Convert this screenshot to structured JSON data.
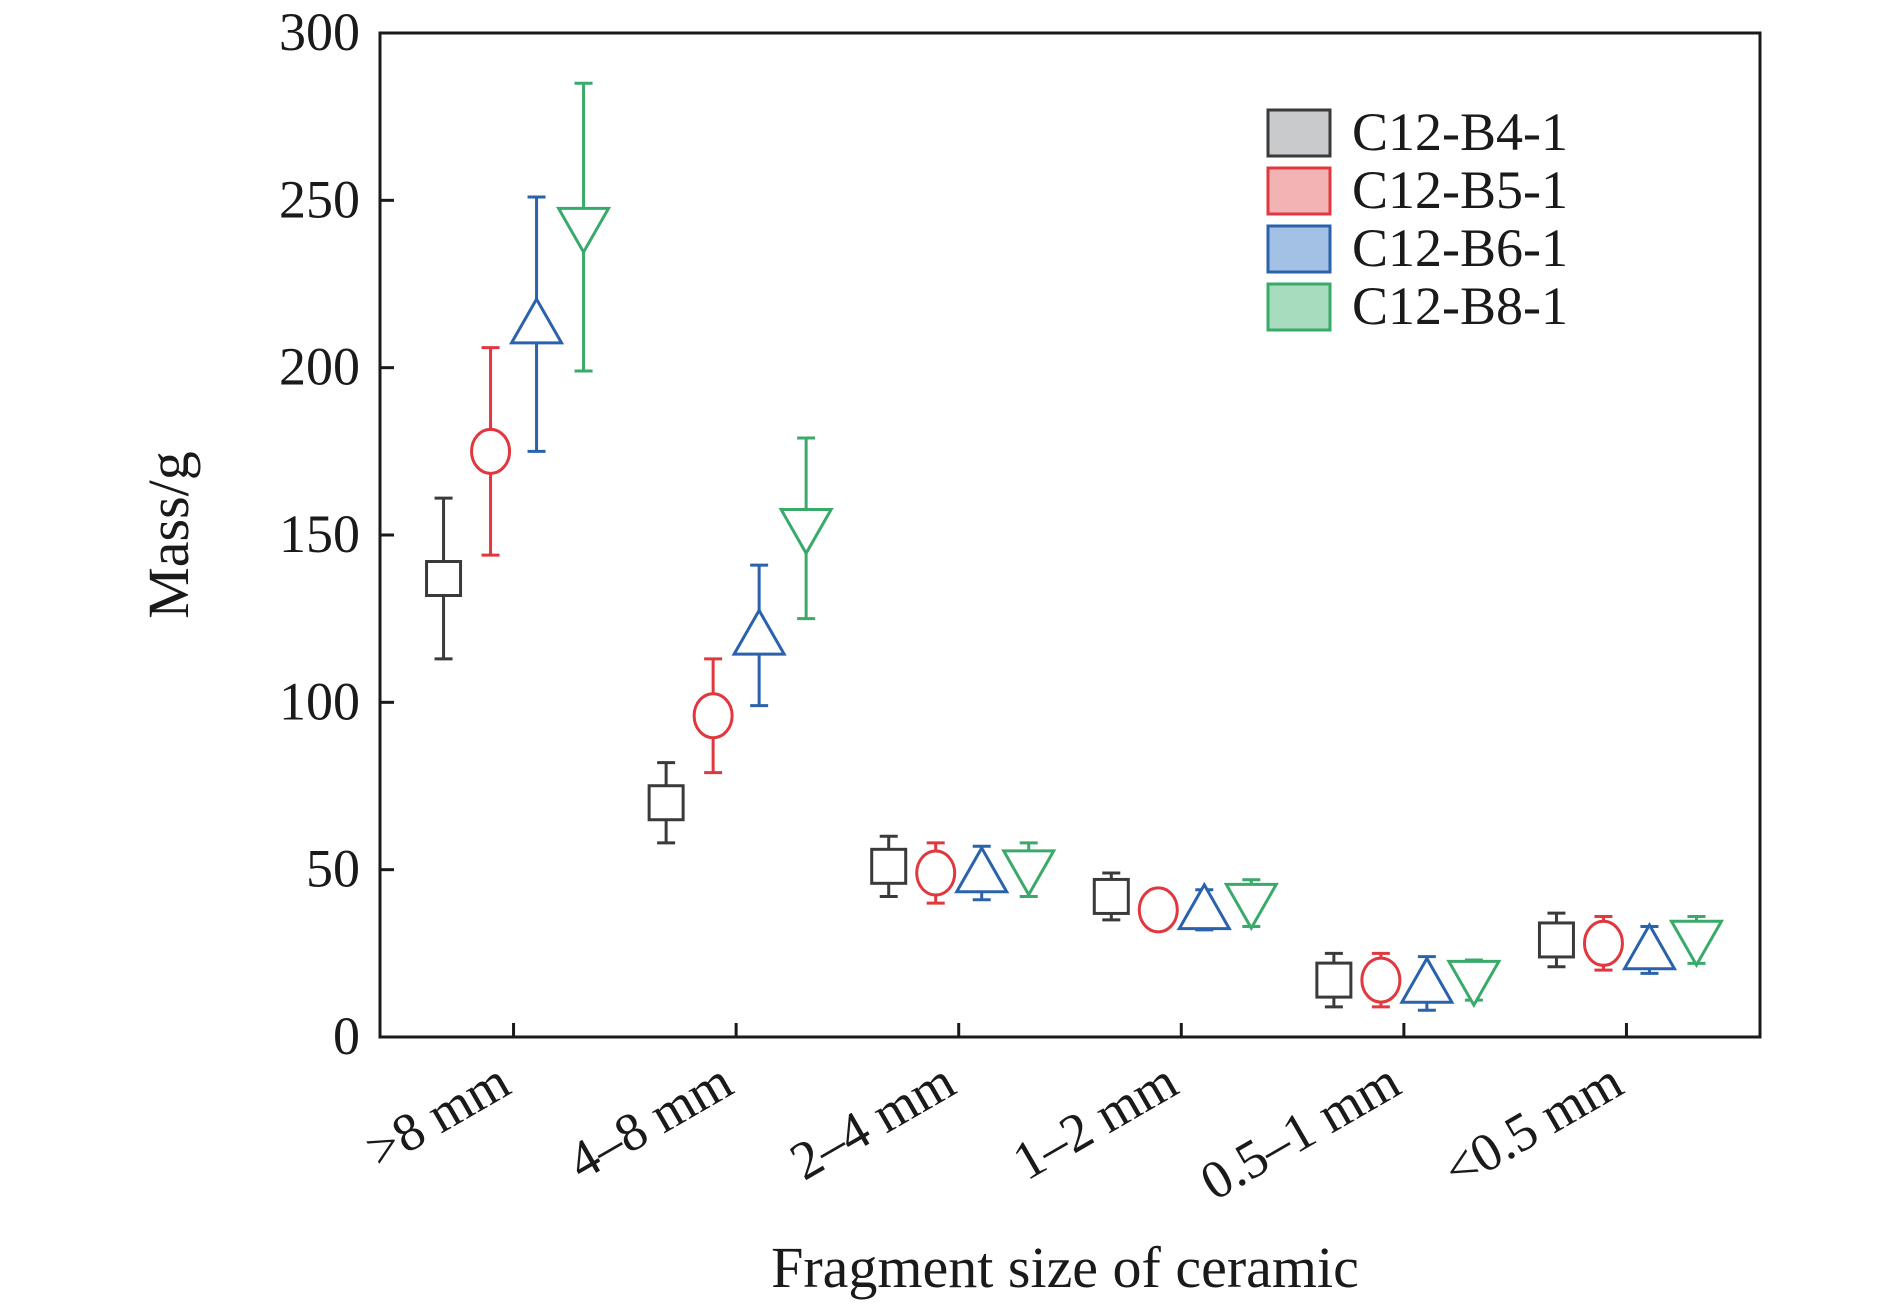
{
  "chart_data": {
    "type": "scatter",
    "title": "",
    "xlabel": "Fragment size of ceramic",
    "ylabel": "Mass/g",
    "ylim": [
      0,
      300
    ],
    "yticks": [
      0,
      50,
      100,
      150,
      200,
      250,
      300
    ],
    "categories": [
      ">8 mm",
      "4–8 mm",
      "2–4 mm",
      "1–2 mm",
      "0.5–1 mm",
      "<0.5 mm"
    ],
    "legend_position": "top-right",
    "grid": false,
    "error_bars": true,
    "series": [
      {
        "name": "C12-B4-1",
        "marker": "square",
        "color": "#3a3a3a",
        "fill": "#c9cacb",
        "values": [
          137,
          70,
          51,
          42,
          17,
          29
        ],
        "errors": [
          24,
          12,
          9,
          7,
          8,
          8
        ]
      },
      {
        "name": "C12-B5-1",
        "marker": "circle",
        "color": "#e0383e",
        "fill": "#f2b3b5",
        "values": [
          175,
          96,
          49,
          38,
          17,
          28
        ],
        "errors": [
          31,
          17,
          9,
          6,
          8,
          8
        ]
      },
      {
        "name": "C12-B6-1",
        "marker": "triangle-up",
        "color": "#2b62ac",
        "fill": "#a3c1e5",
        "values": [
          213,
          120,
          49,
          38,
          16,
          26
        ],
        "errors": [
          38,
          21,
          8,
          6,
          8,
          7
        ]
      },
      {
        "name": "C12-B8-1",
        "marker": "triangle-down",
        "color": "#3aaa6a",
        "fill": "#a8dcbf",
        "values": [
          242,
          152,
          50,
          40,
          17,
          29
        ],
        "errors": [
          43,
          27,
          8,
          7,
          6,
          7
        ]
      }
    ]
  }
}
